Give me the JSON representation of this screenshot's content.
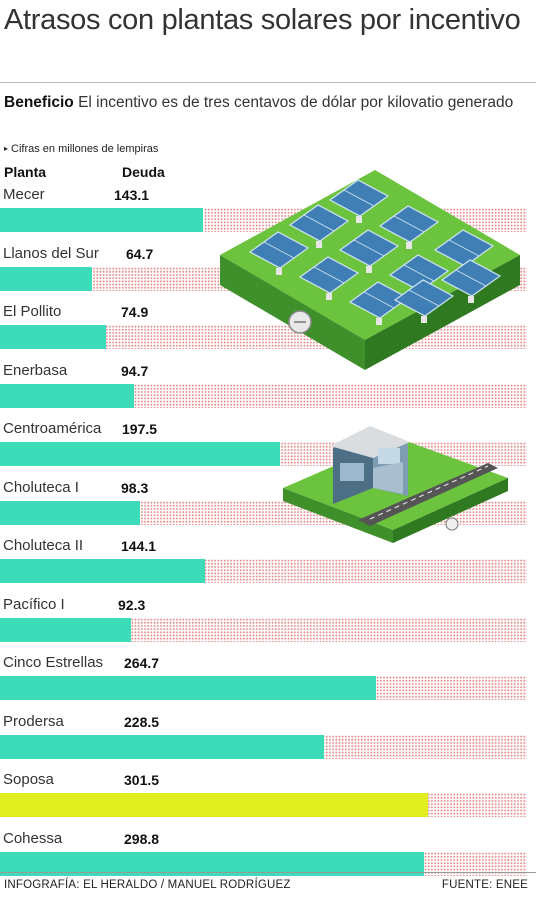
{
  "header": {
    "title": "Atrasos con plantas solares por incentivo",
    "subtitle_bold": "Beneficio",
    "subtitle_text": "El incentivo es de tres centavos de dólar por kilovatio generado",
    "note": "Cifras en millones de lempiras",
    "note_bullet": "▸"
  },
  "chart_data": {
    "type": "bar",
    "orientation": "horizontal",
    "title": "Atrasos con plantas solares por incentivo",
    "column_labels": {
      "category": "Planta",
      "value": "Deuda"
    },
    "categories": [
      "Mecer",
      "Llanos del Sur",
      "El Pollito",
      "Enerbasa",
      "Centroamérica",
      "Choluteca I",
      "Choluteca II",
      "Pacífico I",
      "Cinco Estrellas",
      "Prodersa",
      "Soposa",
      "Cohessa"
    ],
    "value_labels": [
      "143.1",
      "64.7",
      "74.9",
      "94.7",
      "197.5",
      "98.3",
      "144.1",
      "92.3",
      "264.7",
      "228.5",
      "301.5",
      "298.8"
    ],
    "values": [
      143.1,
      64.7,
      74.9,
      94.7,
      197.5,
      98.3,
      144.1,
      92.3,
      264.7,
      228.5,
      301.5,
      298.8
    ],
    "highlight_category": "Soposa",
    "colors": {
      "bar": "#3ddcb8",
      "highlight": "#e0ed1f",
      "background_dots": "#e58a8a"
    }
  },
  "footer": {
    "credit": "INFOGRAFÍA: EL HERALDO / MANUEL RODRÍGUEZ",
    "source": "FUENTE: ENEE"
  }
}
